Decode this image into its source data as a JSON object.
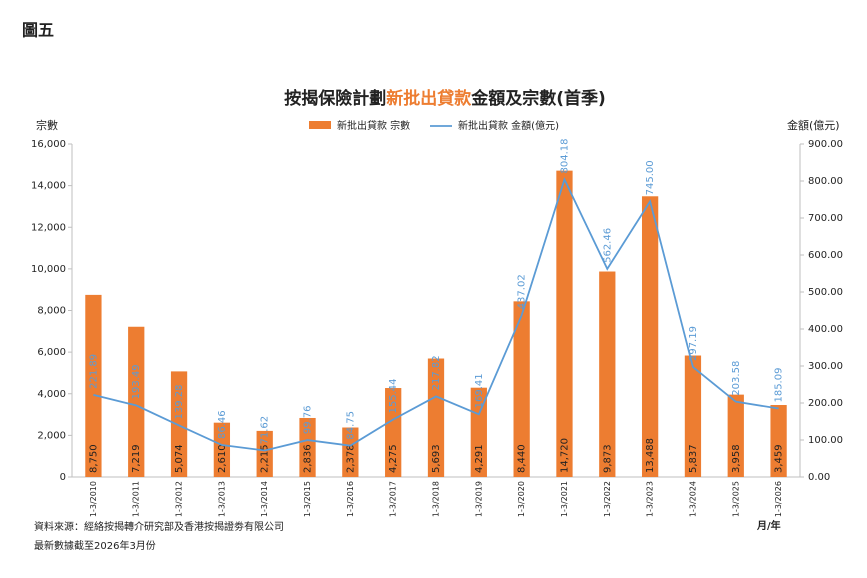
{
  "heading": "圖五",
  "chart_data": {
    "type": "bar-line",
    "title": [
      "按揭保險計劃",
      "新批出貸款",
      "金額及宗數(首季)"
    ],
    "y_label": "宗數",
    "y2_label": "金額(億元)",
    "x_label": "月/年",
    "categories": [
      "1-3/2010",
      "1-3/2011",
      "1-3/2012",
      "1-3/2013",
      "1-3/2014",
      "1-3/2015",
      "1-3/2016",
      "1-3/2017",
      "1-3/2018",
      "1-3/2019",
      "1-3/2020",
      "1-3/2021",
      "1-3/2022",
      "1-3/2023",
      "1-3/2024",
      "1-3/2025",
      "1-3/2026"
    ],
    "series": [
      {
        "name": "新批出貸款 宗數",
        "color": "#ed7d31",
        "type": "bar",
        "values": [
          8750,
          7219,
          5074,
          2610,
          2215,
          2836,
          2378,
          4275,
          5693,
          4291,
          8440,
          14720,
          9873,
          13488,
          5837,
          3958,
          3459
        ],
        "value_labels": [
          "8,750",
          "7,219",
          "5,074",
          "2,610",
          "2,215",
          "2,836",
          "2,378",
          "4,275",
          "5,693",
          "4,291",
          "8,440",
          "14,720",
          "9,873",
          "13,488",
          "5,837",
          "3,958",
          "3,459"
        ]
      },
      {
        "name": "新批出貸款 金額(億元)",
        "color": "#5b9bd5",
        "type": "line",
        "axis": "y2",
        "values": [
          221.89,
          193.49,
          139.28,
          86.46,
          71.62,
          99.76,
          84.75,
          155.44,
          217.82,
          169.41,
          437.02,
          804.18,
          562.46,
          745.0,
          297.19,
          203.58,
          185.09
        ],
        "value_labels": [
          "221.89",
          "193.49",
          "139.28",
          "86.46",
          "71.62",
          "99.76",
          "84.75",
          "155.44",
          "217.82",
          "169.41",
          "437.02",
          "804.18",
          "562.46",
          "745.00",
          "297.19",
          "203.58",
          "185.09"
        ]
      }
    ],
    "ylim": [
      0,
      16000
    ],
    "yticks": [
      0,
      {
        "value": 2000,
        "label": "2,000"
      },
      {
        "value": 4000,
        "label": "4,000"
      },
      {
        "value": 6000,
        "label": "6,000"
      },
      {
        "value": 8000,
        "label": "8,000"
      },
      {
        "value": 10000,
        "label": "10,000"
      },
      {
        "value": 12000,
        "label": "12,000"
      },
      {
        "value": 14000,
        "label": "14,000"
      },
      {
        "value": 16000,
        "label": "16,000"
      }
    ],
    "y2lim": [
      0,
      900
    ],
    "y2ticks": [
      {
        "value": 0,
        "label": "0.00"
      },
      {
        "value": 100,
        "label": "100.00"
      },
      {
        "value": 200,
        "label": "200.00"
      },
      {
        "value": 300,
        "label": "300.00"
      },
      {
        "value": 400,
        "label": "400.00"
      },
      {
        "value": 500,
        "label": "500.00"
      },
      {
        "value": 600,
        "label": "600.00"
      },
      {
        "value": 700,
        "label": "700.00"
      },
      {
        "value": 800,
        "label": "800.00"
      },
      {
        "value": 900,
        "label": "900.00"
      }
    ],
    "grid": false,
    "legend": "top"
  },
  "notes": [
    "資料來源：經絡按揭轉介研究部及香港按揭證劵有限公司",
    "最新數據截至2026年3月份"
  ]
}
